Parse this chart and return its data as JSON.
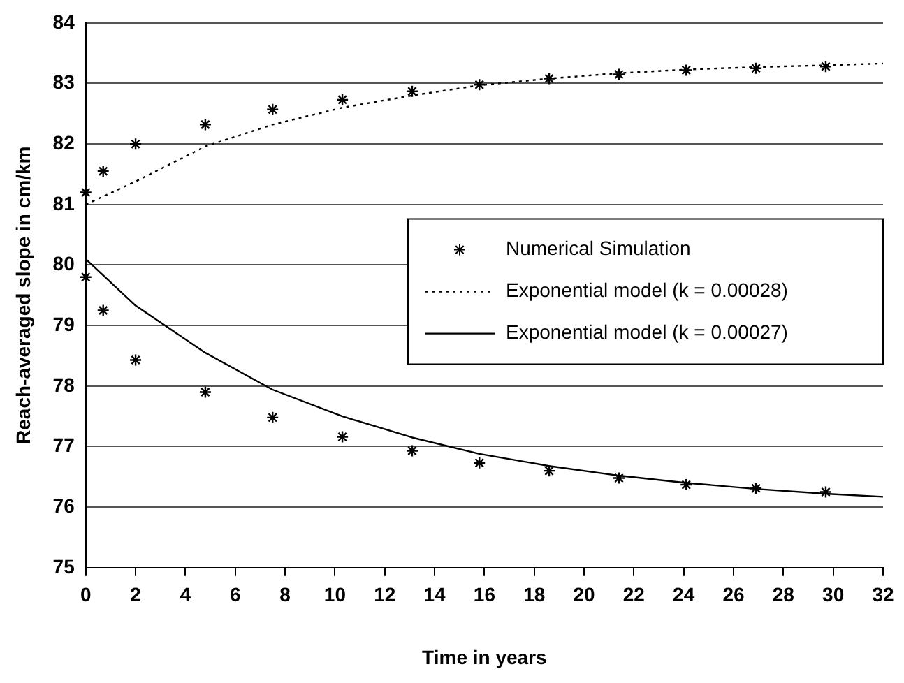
{
  "chart_data": {
    "type": "line",
    "xlabel": "Time in years",
    "ylabel": "Reach-averaged slope in cm/km",
    "xlim": [
      0,
      32
    ],
    "xticks": [
      0,
      2,
      4,
      6,
      8,
      10,
      12,
      14,
      16,
      18,
      20,
      22,
      24,
      26,
      28,
      30,
      32
    ],
    "ylim": [
      75,
      84
    ],
    "yticks": [
      75,
      76,
      77,
      78,
      79,
      80,
      81,
      82,
      83,
      84
    ],
    "grid": "y",
    "legend": "right",
    "series": [
      {
        "name": "Numerical Simulation",
        "type": "scatter",
        "marker": "cross",
        "color": "#000000",
        "x": [
          0,
          0.7,
          2,
          4.8,
          7.5,
          10.3,
          13.1,
          15.8,
          18.6,
          21.4,
          24.1,
          26.9,
          29.7,
          0,
          0.7,
          2,
          4.8,
          7.5,
          10.3,
          13.1,
          15.8,
          18.6,
          21.4,
          24.1,
          26.9,
          29.7
        ],
        "values": [
          81.2,
          81.55,
          82.0,
          82.32,
          82.57,
          82.73,
          82.87,
          82.98,
          83.08,
          83.15,
          83.22,
          83.25,
          83.28,
          79.8,
          79.25,
          78.43,
          77.9,
          77.48,
          77.16,
          76.93,
          76.73,
          76.6,
          76.48,
          76.37,
          76.31,
          76.25
        ]
      },
      {
        "name": "Exponential model (k = 0.00028)",
        "type": "line",
        "marker": "none",
        "line_style": "dotted",
        "color": "#000000",
        "x": [
          0,
          2,
          4.8,
          7.5,
          10.3,
          13.1,
          15.8,
          18.6,
          21.4,
          24.1,
          26.9,
          29.7,
          32
        ],
        "values": [
          81.0,
          81.38,
          81.96,
          82.32,
          82.6,
          82.8,
          82.97,
          83.08,
          83.17,
          83.23,
          83.27,
          83.3,
          83.33
        ]
      },
      {
        "name": "Exponential model (k = 0.00027)",
        "type": "line",
        "marker": "none",
        "line_style": "solid",
        "color": "#000000",
        "x": [
          0,
          2,
          4.8,
          7.5,
          10.3,
          13.1,
          15.8,
          18.6,
          21.4,
          24.1,
          26.9,
          29.7,
          32
        ],
        "values": [
          80.1,
          79.33,
          78.55,
          77.94,
          77.5,
          77.15,
          76.88,
          76.68,
          76.52,
          76.4,
          76.3,
          76.22,
          76.17
        ]
      }
    ]
  }
}
